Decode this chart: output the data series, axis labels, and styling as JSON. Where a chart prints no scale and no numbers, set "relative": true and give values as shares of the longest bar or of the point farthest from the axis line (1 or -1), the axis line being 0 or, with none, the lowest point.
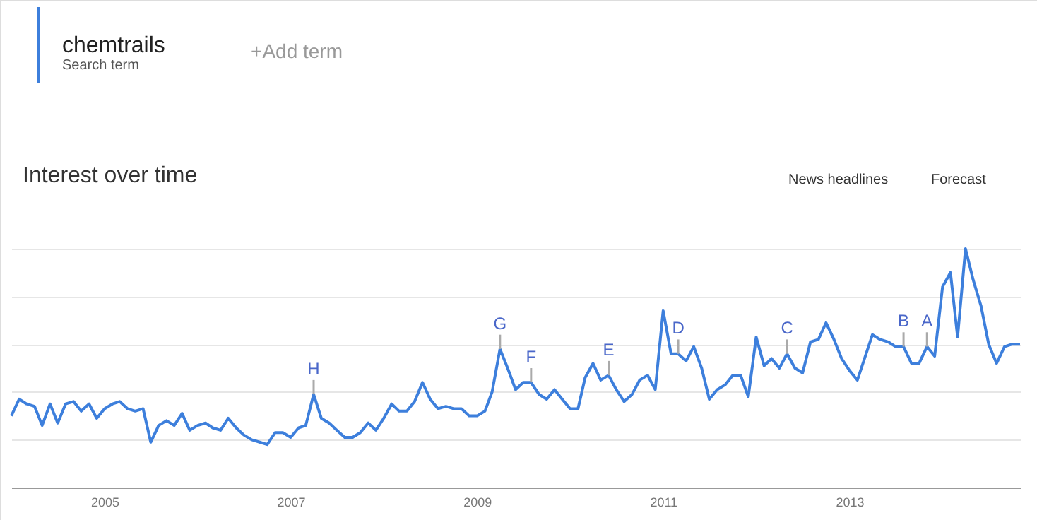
{
  "chart_data": {
    "type": "line",
    "title": "Interest over time",
    "relative": true,
    "grid": "y",
    "tick_labels": "x",
    "marker": "none",
    "line_style": "solid",
    "xlim": [
      "2004-01",
      "2014-11"
    ],
    "xticks": [
      "2005",
      "2007",
      "2009",
      "2011",
      "2013"
    ],
    "annotations": [
      "chemtrails",
      "Search term",
      "+Add term",
      "News headlines",
      "Forecast",
      {
        "text": "H",
        "x": "2007-04",
        "y": 0.39
      },
      {
        "text": "G",
        "x": "2009-04",
        "y": 0.58
      },
      {
        "text": "F",
        "x": "2009-08",
        "y": 0.44
      },
      {
        "text": "E",
        "x": "2010-06",
        "y": 0.47
      },
      {
        "text": "D",
        "x": "2011-03",
        "y": 0.56
      },
      {
        "text": "C",
        "x": "2012-05",
        "y": 0.56
      },
      {
        "text": "B",
        "x": "2013-08",
        "y": 0.59
      },
      {
        "text": "A",
        "x": "2013-11",
        "y": 0.59
      }
    ],
    "x": [
      "2004-01",
      "2004-02",
      "2004-03",
      "2004-04",
      "2004-05",
      "2004-06",
      "2004-07",
      "2004-08",
      "2004-09",
      "2004-10",
      "2004-11",
      "2004-12",
      "2005-01",
      "2005-02",
      "2005-03",
      "2005-04",
      "2005-05",
      "2005-06",
      "2005-07",
      "2005-08",
      "2005-09",
      "2005-10",
      "2005-11",
      "2005-12",
      "2006-01",
      "2006-02",
      "2006-03",
      "2006-04",
      "2006-05",
      "2006-06",
      "2006-07",
      "2006-08",
      "2006-09",
      "2006-10",
      "2006-11",
      "2006-12",
      "2007-01",
      "2007-02",
      "2007-03",
      "2007-04",
      "2007-05",
      "2007-06",
      "2007-07",
      "2007-08",
      "2007-09",
      "2007-10",
      "2007-11",
      "2007-12",
      "2008-01",
      "2008-02",
      "2008-03",
      "2008-04",
      "2008-05",
      "2008-06",
      "2008-07",
      "2008-08",
      "2008-09",
      "2008-10",
      "2008-11",
      "2008-12",
      "2009-01",
      "2009-02",
      "2009-03",
      "2009-04",
      "2009-05",
      "2009-06",
      "2009-07",
      "2009-08",
      "2009-09",
      "2009-10",
      "2009-11",
      "2009-12",
      "2010-01",
      "2010-02",
      "2010-03",
      "2010-04",
      "2010-05",
      "2010-06",
      "2010-07",
      "2010-08",
      "2010-09",
      "2010-10",
      "2010-11",
      "2010-12",
      "2011-01",
      "2011-02",
      "2011-03",
      "2011-04",
      "2011-05",
      "2011-06",
      "2011-07",
      "2011-08",
      "2011-09",
      "2011-10",
      "2011-11",
      "2011-12",
      "2012-01",
      "2012-02",
      "2012-03",
      "2012-04",
      "2012-05",
      "2012-06",
      "2012-07",
      "2012-08",
      "2012-09",
      "2012-10",
      "2012-11",
      "2012-12",
      "2013-01",
      "2013-02",
      "2013-03",
      "2013-04",
      "2013-05",
      "2013-06",
      "2013-07",
      "2013-08",
      "2013-09",
      "2013-10",
      "2013-11",
      "2013-12",
      "2014-01",
      "2014-02",
      "2014-03",
      "2014-04",
      "2014-05",
      "2014-06",
      "2014-07",
      "2014-08",
      "2014-09",
      "2014-10",
      "2014-11"
    ],
    "series": [
      {
        "color": "#3d7fdc",
        "values": [
          0.3,
          0.37,
          0.35,
          0.34,
          0.26,
          0.35,
          0.27,
          0.35,
          0.36,
          0.32,
          0.35,
          0.29,
          0.33,
          0.35,
          0.36,
          0.33,
          0.32,
          0.33,
          0.19,
          0.26,
          0.28,
          0.26,
          0.31,
          0.24,
          0.26,
          0.27,
          0.25,
          0.24,
          0.29,
          0.25,
          0.22,
          0.2,
          0.19,
          0.18,
          0.23,
          0.23,
          0.21,
          0.25,
          0.26,
          0.39,
          0.29,
          0.27,
          0.24,
          0.21,
          0.21,
          0.23,
          0.27,
          0.24,
          0.29,
          0.35,
          0.32,
          0.32,
          0.36,
          0.44,
          0.37,
          0.33,
          0.34,
          0.33,
          0.33,
          0.3,
          0.3,
          0.32,
          0.4,
          0.58,
          0.5,
          0.41,
          0.44,
          0.44,
          0.39,
          0.37,
          0.41,
          0.37,
          0.33,
          0.33,
          0.46,
          0.52,
          0.45,
          0.47,
          0.41,
          0.36,
          0.39,
          0.45,
          0.47,
          0.41,
          0.74,
          0.56,
          0.56,
          0.53,
          0.59,
          0.5,
          0.37,
          0.41,
          0.43,
          0.47,
          0.47,
          0.38,
          0.63,
          0.51,
          0.54,
          0.5,
          0.56,
          0.5,
          0.48,
          0.61,
          0.62,
          0.69,
          0.62,
          0.54,
          0.49,
          0.45,
          0.54,
          0.64,
          0.62,
          0.61,
          0.59,
          0.59,
          0.52,
          0.52,
          0.59,
          0.55,
          0.84,
          0.9,
          0.63,
          1.0,
          0.87,
          0.76,
          0.6,
          0.52,
          0.59,
          0.6,
          0.6
        ]
      }
    ]
  }
}
